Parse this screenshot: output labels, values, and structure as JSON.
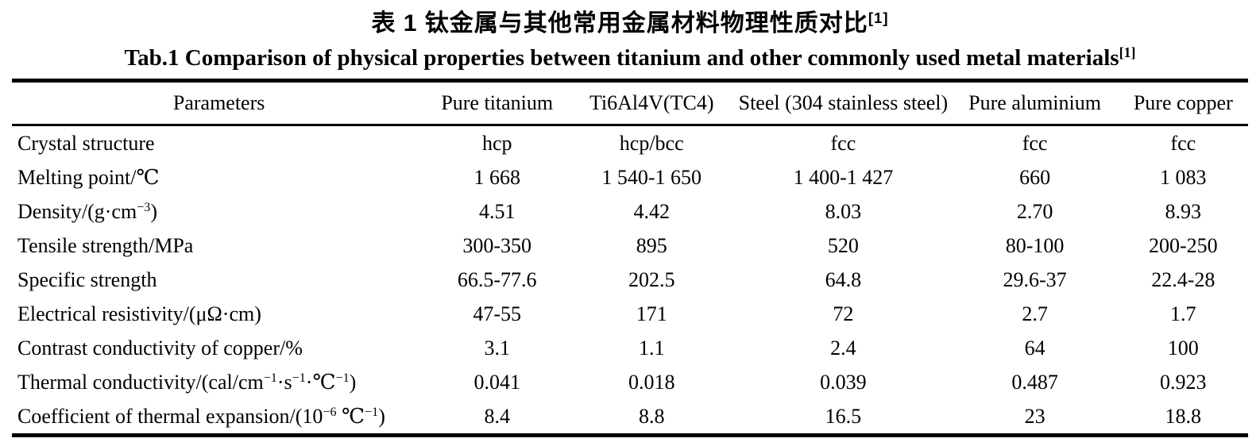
{
  "titles": {
    "chinese": "表 1  钛金属与其他常用金属材料物理性质对比^{[1]}",
    "english": "Tab.1 Comparison of physical properties between titanium and other commonly used metal materials^{[1]}"
  },
  "table": {
    "columns": [
      "Parameters",
      "Pure titanium",
      "Ti6Al4V(TC4)",
      "Steel (304 stainless steel)",
      "Pure aluminium",
      "Pure copper"
    ],
    "rows": [
      {
        "label": "Crystal structure",
        "values": [
          "hcp",
          "hcp/bcc",
          "fcc",
          "fcc",
          "fcc"
        ]
      },
      {
        "label": "Melting point/℃",
        "values": [
          "1 668",
          "1 540-1 650",
          "1 400-1 427",
          "660",
          "1 083"
        ]
      },
      {
        "label": "Density/(g·cm^{−3})",
        "values": [
          "4.51",
          "4.42",
          "8.03",
          "2.70",
          "8.93"
        ]
      },
      {
        "label": "Tensile strength/MPa",
        "values": [
          "300-350",
          "895",
          "520",
          "80-100",
          "200-250"
        ]
      },
      {
        "label": "Specific strength",
        "values": [
          "66.5-77.6",
          "202.5",
          "64.8",
          "29.6-37",
          "22.4-28"
        ]
      },
      {
        "label": "Electrical resistivity/(μΩ·cm)",
        "values": [
          "47-55",
          "171",
          "72",
          "2.7",
          "1.7"
        ]
      },
      {
        "label": "Contrast conductivity of copper/%",
        "values": [
          "3.1",
          "1.1",
          "2.4",
          "64",
          "100"
        ]
      },
      {
        "label": "Thermal conductivity/(cal/cm^{−1}·s^{−1}·℃^{−1})",
        "values": [
          "0.041",
          "0.018",
          "0.039",
          "0.487",
          "0.923"
        ]
      },
      {
        "label": "Coefficient of thermal expansion/(10^{−6}  ℃^{−1})",
        "values": [
          "8.4",
          "8.8",
          "16.5",
          "23",
          "18.8"
        ]
      }
    ]
  }
}
